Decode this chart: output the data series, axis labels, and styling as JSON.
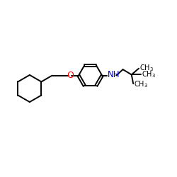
{
  "bg_color": "#ffffff",
  "bond_color": "#000000",
  "O_color": "#ff0000",
  "N_color": "#0000cc",
  "text_color": "#000000",
  "figsize": [
    2.5,
    2.5
  ],
  "dpi": 100,
  "lw": 1.4,
  "xlim": [
    0,
    10
  ],
  "ylim": [
    0,
    10
  ]
}
